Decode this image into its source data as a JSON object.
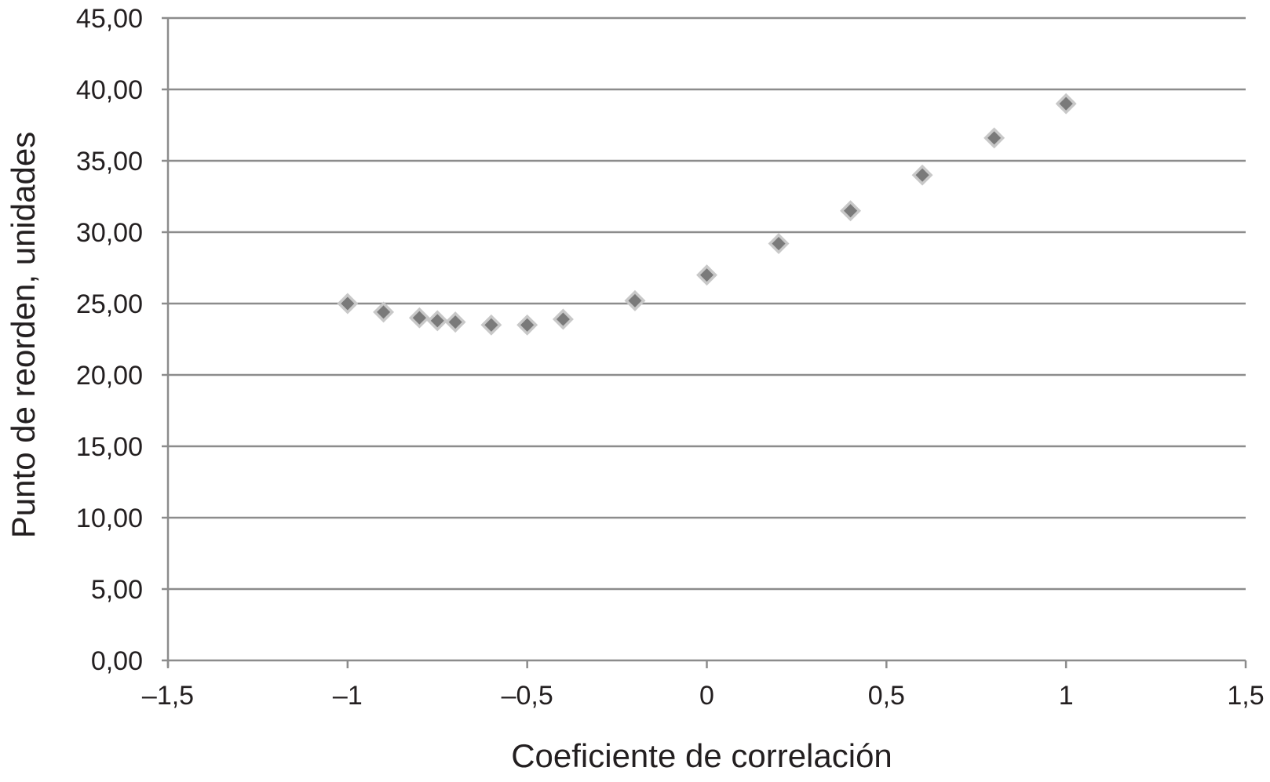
{
  "chart_data": {
    "type": "scatter",
    "title": "",
    "xlabel": "Coeficiente de correlación",
    "ylabel": "Punto de reorden, unidades",
    "xlim": [
      -1.5,
      1.5
    ],
    "ylim": [
      0,
      45
    ],
    "x_ticks": [
      -1.5,
      -1,
      -0.5,
      0,
      0.5,
      1,
      1.5
    ],
    "x_tick_labels": [
      "–1,5",
      "–1",
      "–0,5",
      "0",
      "0,5",
      "1",
      "1,5"
    ],
    "y_ticks": [
      0,
      5,
      10,
      15,
      20,
      25,
      30,
      35,
      40,
      45
    ],
    "y_tick_labels": [
      "0,00",
      "5,00",
      "10,00",
      "15,00",
      "20,00",
      "25,00",
      "30,00",
      "35,00",
      "40,00",
      "45,00"
    ],
    "grid": "horizontal",
    "legend": "none",
    "marker": "diamond",
    "colors": {
      "marker_fill": "#7a7a7a",
      "marker_edge": "#c8c8c8",
      "grid": "#8c8c8c",
      "axis": "#8c8c8c",
      "text": "#231f20"
    },
    "series": [
      {
        "x": [
          -1,
          -0.9,
          -0.8,
          -0.75,
          -0.7,
          -0.6,
          -0.5,
          -0.4,
          -0.2,
          0,
          0.2,
          0.4,
          0.6,
          0.8,
          1
        ],
        "y": [
          25.0,
          24.4,
          24.0,
          23.8,
          23.7,
          23.5,
          23.5,
          23.9,
          25.2,
          27.0,
          29.2,
          31.5,
          34.0,
          36.6,
          39.0
        ]
      }
    ]
  }
}
